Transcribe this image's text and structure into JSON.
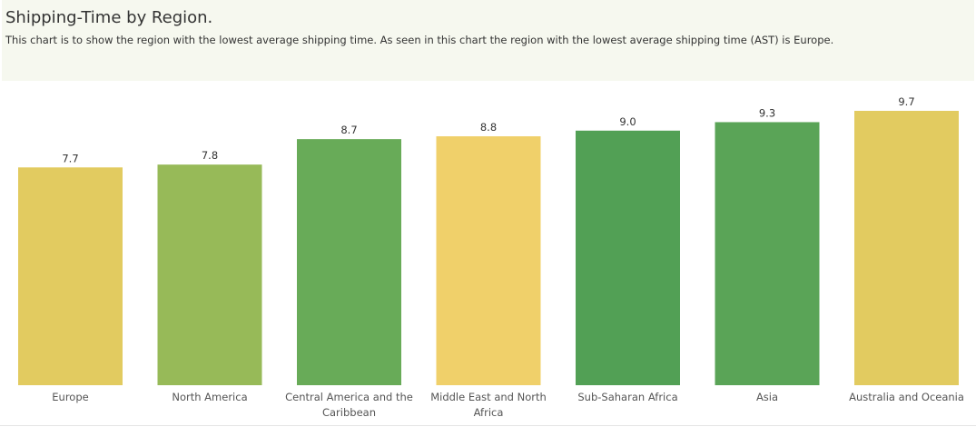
{
  "header": {
    "title": "Shipping-Time by Region.",
    "subtitle": "This chart is to show the region with the lowest average shipping time. As seen in this chart the region with the lowest average shipping time (AST) is Europe."
  },
  "chart_data": {
    "type": "bar",
    "title": "Shipping-Time by Region.",
    "subtitle": "This chart is to show the region with the lowest average shipping time. As seen in this chart the region with the lowest average shipping time (AST) is Europe.",
    "categories": [
      [
        "Europe"
      ],
      [
        "North America"
      ],
      [
        "Central America and the",
        "Caribbean"
      ],
      [
        "Middle East and North",
        "Africa"
      ],
      [
        "Sub-Saharan Africa"
      ],
      [
        "Asia"
      ],
      [
        "Australia and Oceania"
      ]
    ],
    "values": [
      7.7,
      7.8,
      8.7,
      8.8,
      9.0,
      9.3,
      9.7
    ],
    "value_labels": [
      "7.7",
      "7.8",
      "8.7",
      "8.8",
      "9.0",
      "9.3",
      "9.7"
    ],
    "colors": [
      "#e2cb60",
      "#97ba58",
      "#68ab58",
      "#f0d06a",
      "#52a055",
      "#5aa457",
      "#e2cb60"
    ],
    "xlabel": "",
    "ylabel": "",
    "ylim": [
      0,
      9.7
    ],
    "grid": false,
    "legend": "none"
  }
}
